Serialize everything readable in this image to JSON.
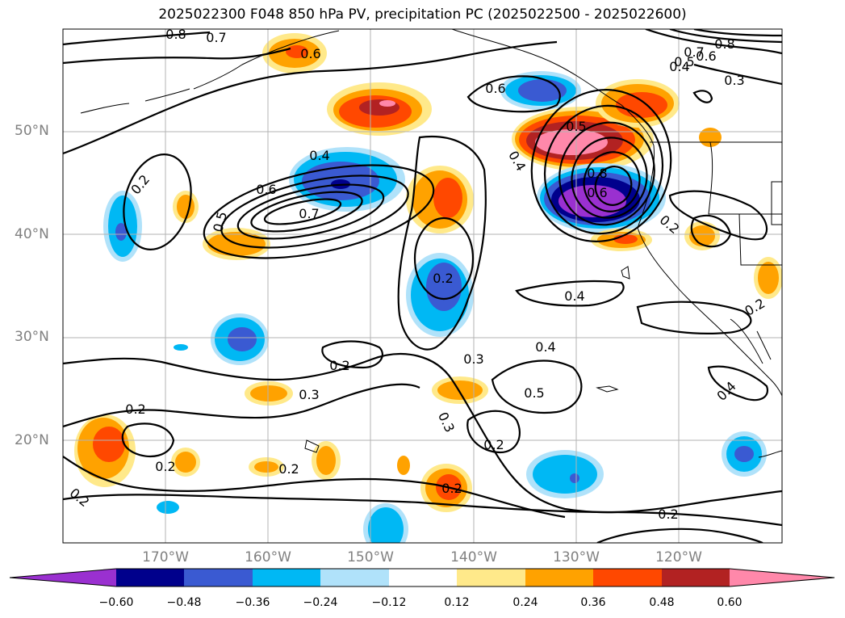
{
  "title": "2025022300 F048 850 hPa PV, precipitation PC (2025022500 - 2025022600)",
  "map": {
    "projection": "lat-lon",
    "lon_range": [
      -180,
      -110
    ],
    "lat_range": [
      10,
      60
    ],
    "gridlines": true,
    "coastlines": true,
    "lat_ticks": [
      "50°N",
      "40°N",
      "30°N",
      "20°N"
    ],
    "lon_ticks": [
      "170°W",
      "160°W",
      "150°W",
      "140°W",
      "130°W",
      "120°W"
    ],
    "contour_field": "850 hPa PV",
    "contour_labels": [
      "0.8",
      "0.7",
      "0.6",
      "0.6",
      "0.8",
      "0.6",
      "0.7",
      "0.5",
      "0.4",
      "0.3",
      "0.5",
      "0.4",
      "0.6",
      "0.5",
      "0.7",
      "0.4",
      "0.2",
      "0.8",
      "0.6",
      "0.2",
      "0.2",
      "0.4",
      "0.2",
      "0.2",
      "0.3",
      "0.4",
      "0.5",
      "0.3",
      "0.3",
      "0.2",
      "0.2",
      "0.2",
      "0.2",
      "0.4",
      "0.2",
      "0.2",
      "0.2"
    ]
  },
  "colorbar": {
    "ticks": [
      "−0.60",
      "−0.48",
      "−0.36",
      "−0.24",
      "−0.12",
      "0.12",
      "0.24",
      "0.36",
      "0.48",
      "0.60"
    ],
    "colors": [
      "#9a30d0",
      "#00008c",
      "#3a5ad2",
      "#00b8f4",
      "#b0e2fa",
      "#ffffff",
      "#ffe98a",
      "#ffa200",
      "#ff4800",
      "#b22222",
      "#ff88aa"
    ],
    "extend": "both"
  }
}
